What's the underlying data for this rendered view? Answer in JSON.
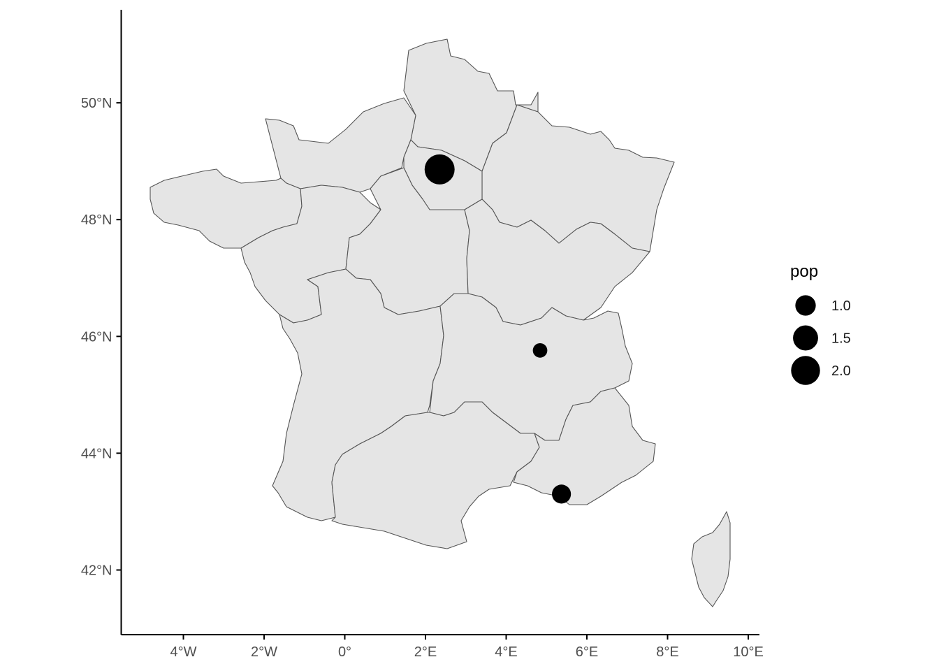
{
  "chart_data": {
    "type": "scatter",
    "subtype": "map-bubble",
    "region": "France (metropolitan regions + Corsica)",
    "xlabel": "",
    "ylabel": "",
    "xlim": [
      -5.5,
      10.3
    ],
    "ylim": [
      40.85,
      51.55
    ],
    "x_ticks": [
      {
        "value": -4,
        "label": "4°W"
      },
      {
        "value": -2,
        "label": "2°W"
      },
      {
        "value": 0,
        "label": "0°"
      },
      {
        "value": 2,
        "label": "2°E"
      },
      {
        "value": 4,
        "label": "4°E"
      },
      {
        "value": 6,
        "label": "6°E"
      },
      {
        "value": 8,
        "label": "8°E"
      },
      {
        "value": 10,
        "label": "10°E"
      }
    ],
    "y_ticks": [
      {
        "value": 42,
        "label": "42°N"
      },
      {
        "value": 44,
        "label": "44°N"
      },
      {
        "value": 46,
        "label": "46°N"
      },
      {
        "value": 48,
        "label": "48°N"
      },
      {
        "value": 50,
        "label": "50°N"
      }
    ],
    "points": [
      {
        "lon": 2.35,
        "lat": 48.86,
        "pop": 2.15
      },
      {
        "lon": 4.84,
        "lat": 45.76,
        "pop": 0.5
      },
      {
        "lon": 5.37,
        "lat": 43.3,
        "pop": 0.86
      }
    ],
    "size_legend": {
      "title": "pop",
      "entries": [
        {
          "value": 1.0,
          "label": "1.0"
        },
        {
          "value": 1.5,
          "label": "1.5"
        },
        {
          "value": 2.0,
          "label": "2.0"
        }
      ]
    },
    "colors": {
      "land": "#e5e5e5",
      "border": "#555555",
      "point": "#000000",
      "axis": "#000000",
      "tick_label": "#4d4d4d"
    },
    "grid": false,
    "legend_position": "right"
  }
}
